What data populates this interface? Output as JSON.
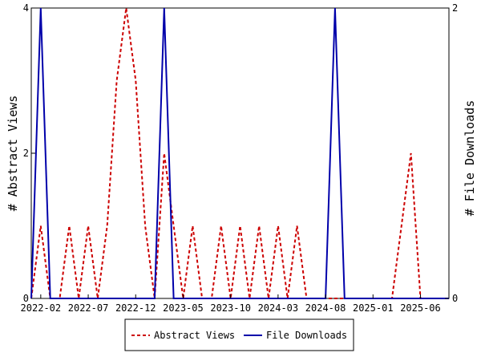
{
  "chart_data": {
    "type": "line",
    "title": "",
    "xlabel": "",
    "ylabel_left": "# Abstract Views",
    "ylabel_right": "# File Downloads",
    "ylim_left": [
      0,
      4
    ],
    "ylim_right": [
      0,
      2
    ],
    "yticks_left": [
      "0",
      "2",
      "4"
    ],
    "yticks_right": [
      "0",
      "2"
    ],
    "x_start": "2022-01",
    "x_end": "2025-09",
    "xticks": [
      "2022-02",
      "2022-07",
      "2022-12",
      "2023-05",
      "2023-10",
      "2024-03",
      "2024-08",
      "2025-01",
      "2025-06"
    ],
    "grid": false,
    "legend_position": "bottom",
    "series": [
      {
        "name": "Abstract Views",
        "axis": "left",
        "color": "#cc0000",
        "dash": "dashed",
        "points": [
          [
            "2022-01",
            0
          ],
          [
            "2022-02",
            1
          ],
          [
            "2022-03",
            0
          ],
          [
            "2022-04",
            0
          ],
          [
            "2022-05",
            1
          ],
          [
            "2022-06",
            0
          ],
          [
            "2022-07",
            1
          ],
          [
            "2022-08",
            0
          ],
          [
            "2022-09",
            1
          ],
          [
            "2022-10",
            3
          ],
          [
            "2022-11",
            4
          ],
          [
            "2022-12",
            3
          ],
          [
            "2023-01",
            1
          ],
          [
            "2023-02",
            0
          ],
          [
            "2023-03",
            2
          ],
          [
            "2023-04",
            1
          ],
          [
            "2023-05",
            0
          ],
          [
            "2023-06",
            1
          ],
          [
            "2023-07",
            0
          ],
          [
            "2023-08",
            0
          ],
          [
            "2023-09",
            1
          ],
          [
            "2023-10",
            0
          ],
          [
            "2023-11",
            1
          ],
          [
            "2023-12",
            0
          ],
          [
            "2024-01",
            1
          ],
          [
            "2024-02",
            0
          ],
          [
            "2024-03",
            1
          ],
          [
            "2024-04",
            0
          ],
          [
            "2024-05",
            1
          ],
          [
            "2024-06",
            0
          ],
          [
            "2024-07",
            0
          ],
          [
            "2024-08",
            0
          ],
          [
            "2024-09",
            0
          ],
          [
            "2024-10",
            0
          ],
          [
            "2024-11",
            0
          ],
          [
            "2024-12",
            0
          ],
          [
            "2025-01",
            0
          ],
          [
            "2025-02",
            0
          ],
          [
            "2025-03",
            0
          ],
          [
            "2025-04",
            1
          ],
          [
            "2025-05",
            2
          ],
          [
            "2025-06",
            0
          ],
          [
            "2025-07",
            0
          ],
          [
            "2025-08",
            0
          ],
          [
            "2025-09",
            0
          ]
        ]
      },
      {
        "name": "File Downloads",
        "axis": "right",
        "color": "#0000aa",
        "dash": "solid",
        "points": [
          [
            "2022-01",
            0
          ],
          [
            "2022-02",
            2
          ],
          [
            "2022-03",
            0
          ],
          [
            "2022-04",
            0
          ],
          [
            "2022-05",
            0
          ],
          [
            "2022-06",
            0
          ],
          [
            "2022-07",
            0
          ],
          [
            "2022-08",
            0
          ],
          [
            "2022-09",
            0
          ],
          [
            "2022-10",
            0
          ],
          [
            "2022-11",
            0
          ],
          [
            "2022-12",
            0
          ],
          [
            "2023-01",
            0
          ],
          [
            "2023-02",
            0
          ],
          [
            "2023-03",
            2
          ],
          [
            "2023-04",
            0
          ],
          [
            "2023-05",
            0
          ],
          [
            "2023-06",
            0
          ],
          [
            "2023-07",
            0
          ],
          [
            "2023-08",
            0
          ],
          [
            "2023-09",
            0
          ],
          [
            "2023-10",
            0
          ],
          [
            "2023-11",
            0
          ],
          [
            "2023-12",
            0
          ],
          [
            "2024-01",
            0
          ],
          [
            "2024-02",
            0
          ],
          [
            "2024-03",
            0
          ],
          [
            "2024-04",
            0
          ],
          [
            "2024-05",
            0
          ],
          [
            "2024-06",
            0
          ],
          [
            "2024-07",
            0
          ],
          [
            "2024-08",
            0
          ],
          [
            "2024-09",
            2
          ],
          [
            "2024-10",
            0
          ],
          [
            "2024-11",
            0
          ],
          [
            "2024-12",
            0
          ],
          [
            "2025-01",
            0
          ],
          [
            "2025-02",
            0
          ],
          [
            "2025-03",
            0
          ],
          [
            "2025-04",
            0
          ],
          [
            "2025-05",
            0
          ],
          [
            "2025-06",
            0
          ],
          [
            "2025-07",
            0
          ],
          [
            "2025-08",
            0
          ],
          [
            "2025-09",
            0
          ]
        ]
      }
    ]
  }
}
